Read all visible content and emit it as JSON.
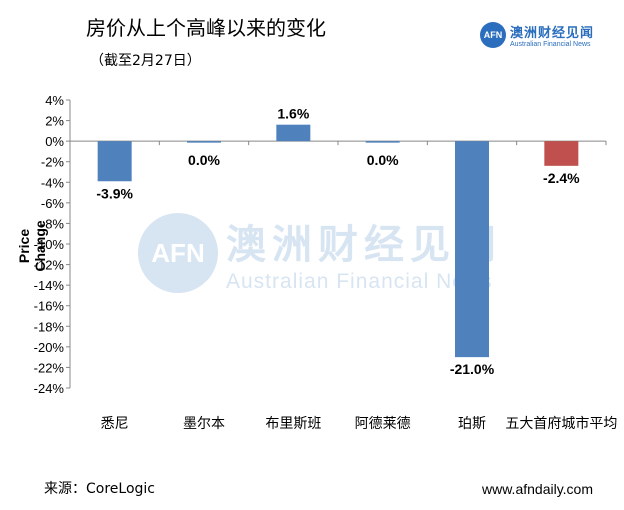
{
  "header": {
    "title": "房价从上个高峰以来的变化",
    "subtitle": "（截至2月27日）"
  },
  "logo": {
    "badge": "AFN",
    "name_cn": "澳洲财经见闻",
    "name_en": "Australian Financial News"
  },
  "watermark": {
    "badge": "AFN",
    "name_cn": "澳洲财经见闻",
    "name_en": "Australian Financial News"
  },
  "footer": {
    "source": "来源：CoreLogic",
    "website": "www.afndaily.com"
  },
  "colors": {
    "negative_bar": "#4f81bd",
    "positive_bar": "#4f81bd",
    "average_bar": "#c0504d",
    "brand": "#2a6ebd"
  },
  "chart_data": {
    "type": "bar",
    "title": "",
    "xlabel": "",
    "ylabel": "Price Change",
    "ylim": [
      -24,
      4
    ],
    "ytick_step": 2,
    "yticks": [
      "4%",
      "2%",
      "0%",
      "-2%",
      "-4%",
      "-6%",
      "-8%",
      "-10%",
      "-12%",
      "-14%",
      "-16%",
      "-18%",
      "-20%",
      "-22%",
      "-24%"
    ],
    "categories": [
      "悉尼",
      "墨尔本",
      "布里斯班",
      "阿德莱德",
      "珀斯",
      "五大首府城市平均"
    ],
    "values": [
      -3.9,
      0.0,
      1.6,
      0.0,
      -21.0,
      -2.4
    ],
    "data_labels": [
      "-3.9%",
      "0.0%",
      "1.6%",
      "0.0%",
      "-21.0%",
      "-2.4%"
    ],
    "bar_colors": [
      "#4f81bd",
      "#4f81bd",
      "#4f81bd",
      "#4f81bd",
      "#4f81bd",
      "#c0504d"
    ],
    "grid": false,
    "legend": "none"
  }
}
